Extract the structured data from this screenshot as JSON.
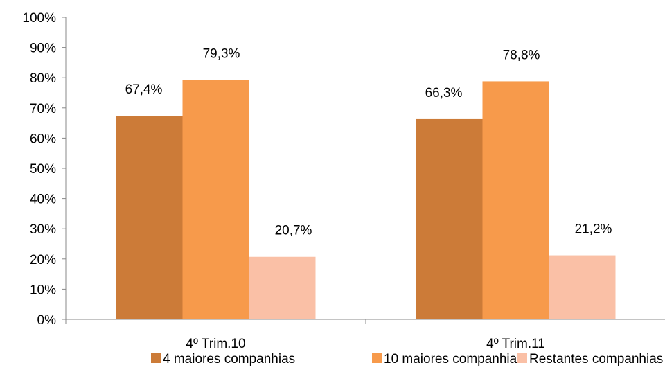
{
  "chart_data": {
    "type": "bar",
    "categories": [
      "4º Trim.10",
      "4º Trim.11"
    ],
    "series": [
      {
        "name": "4 maiores companhias",
        "values": [
          67.4,
          66.3
        ],
        "labels": [
          "67,4%",
          "66,3%"
        ],
        "color": "#CC7B38"
      },
      {
        "name": "10 maiores companhias",
        "values": [
          79.3,
          78.8
        ],
        "labels": [
          "79,3%",
          "78,8%"
        ],
        "color": "#F79A4B"
      },
      {
        "name": "Restantes companhias",
        "values": [
          20.7,
          21.2
        ],
        "labels": [
          "20,7%",
          "21,2%"
        ],
        "color": "#FAC0A6"
      }
    ],
    "ylim": [
      0,
      100
    ],
    "yticks": [
      "0%",
      "10%",
      "20%",
      "30%",
      "40%",
      "50%",
      "60%",
      "70%",
      "80%",
      "90%",
      "100%"
    ],
    "grid": false,
    "legend": "bottom",
    "title": "",
    "xlabel": "",
    "ylabel": ""
  }
}
